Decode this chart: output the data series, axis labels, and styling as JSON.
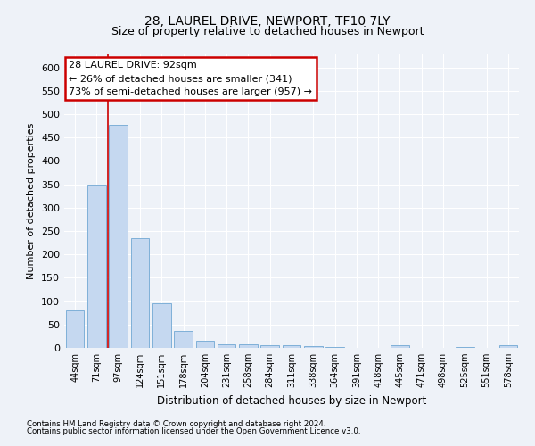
{
  "title1": "28, LAUREL DRIVE, NEWPORT, TF10 7LY",
  "title2": "Size of property relative to detached houses in Newport",
  "xlabel": "Distribution of detached houses by size in Newport",
  "ylabel": "Number of detached properties",
  "categories": [
    "44sqm",
    "71sqm",
    "97sqm",
    "124sqm",
    "151sqm",
    "178sqm",
    "204sqm",
    "231sqm",
    "258sqm",
    "284sqm",
    "311sqm",
    "338sqm",
    "364sqm",
    "391sqm",
    "418sqm",
    "445sqm",
    "471sqm",
    "498sqm",
    "525sqm",
    "551sqm",
    "578sqm"
  ],
  "values": [
    80,
    350,
    478,
    234,
    95,
    37,
    16,
    8,
    8,
    5,
    5,
    3,
    1,
    0,
    0,
    5,
    0,
    0,
    1,
    0,
    5
  ],
  "bar_color": "#c5d8f0",
  "bar_edge_color": "#7fb0d8",
  "highlight_color": "#cc0000",
  "annotation_line1": "28 LAUREL DRIVE: 92sqm",
  "annotation_line2": "← 26% of detached houses are smaller (341)",
  "annotation_line3": "73% of semi-detached houses are larger (957) →",
  "annotation_box_color": "#cc0000",
  "ylim_max": 630,
  "yticks": [
    0,
    50,
    100,
    150,
    200,
    250,
    300,
    350,
    400,
    450,
    500,
    550,
    600
  ],
  "footnote1": "Contains HM Land Registry data © Crown copyright and database right 2024.",
  "footnote2": "Contains public sector information licensed under the Open Government Licence v3.0.",
  "bg_color": "#eef2f8",
  "grid_color": "#ffffff",
  "title1_fontsize": 10,
  "title2_fontsize": 9
}
